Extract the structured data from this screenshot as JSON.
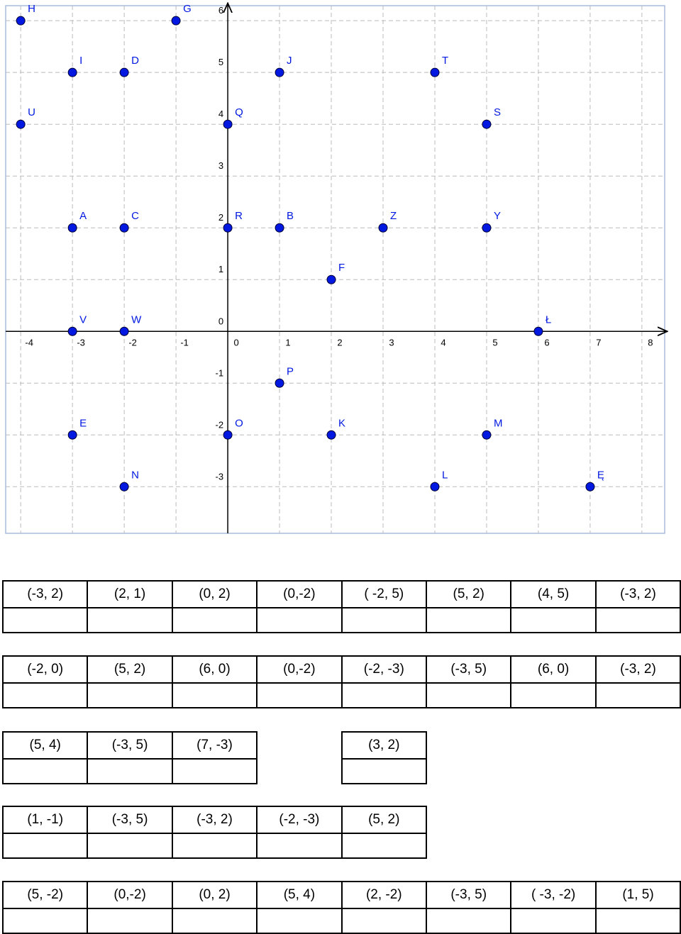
{
  "chart_data": {
    "type": "scatter",
    "labels": [
      "H",
      "G",
      "I",
      "D",
      "J",
      "T",
      "U",
      "Q",
      "S",
      "A",
      "C",
      "R",
      "B",
      "Z",
      "Y",
      "F",
      "V",
      "W",
      "Ł",
      "P",
      "E",
      "O",
      "K",
      "M",
      "N",
      "L",
      "Ę"
    ],
    "x": [
      -4,
      -1,
      -3,
      -2,
      1,
      4,
      -4,
      0,
      5,
      -3,
      -2,
      0,
      1,
      3,
      5,
      2,
      -3,
      -2,
      6,
      1,
      -3,
      0,
      2,
      5,
      -2,
      4,
      7
    ],
    "values": [
      6,
      6,
      5,
      5,
      5,
      5,
      4,
      4,
      4,
      2,
      2,
      2,
      2,
      2,
      2,
      1,
      0,
      0,
      0,
      -1,
      -2,
      -2,
      -2,
      -2,
      -3,
      -3,
      -3
    ],
    "color": "#0018e0",
    "xlim": [
      -4.29,
      8.44
    ],
    "ylim": [
      -3.9,
      6.29
    ],
    "xticks": [
      -4,
      -3,
      -2,
      -1,
      0,
      1,
      2,
      3,
      4,
      5,
      6,
      7,
      8
    ],
    "yticks": [
      -3,
      -2,
      -1,
      0,
      1,
      2,
      3,
      4,
      5,
      6
    ],
    "grid": true
  },
  "tables": [
    {
      "cells": [
        "(-3, 2)",
        "(2, 1)",
        "(0, 2)",
        "(0,-2)",
        "( -2, 5)",
        "(5, 2)",
        "(4, 5)",
        "(-3, 2)"
      ]
    },
    {
      "cells": [
        "(-2, 0)",
        "(5, 2)",
        "(6, 0)",
        "(0,-2)",
        "(-2, -3)",
        "(-3, 5)",
        "(6, 0)",
        "(-3, 2)"
      ]
    },
    {
      "cells": [
        "(5, 4)",
        "(-3, 5)",
        "(7, -3)",
        null,
        "(3, 2)"
      ]
    },
    {
      "cells": [
        "(1, -1)",
        "(-3, 5)",
        "(-3, 2)",
        "(-2, -3)",
        "(5, 2)"
      ]
    },
    {
      "cells": [
        "(5, -2)",
        "(0,-2)",
        "(0, 2)",
        "(5, 4)",
        "(2, -2)",
        "(-3, 5)",
        "( -3, -2)",
        "(1, 5)"
      ]
    }
  ]
}
